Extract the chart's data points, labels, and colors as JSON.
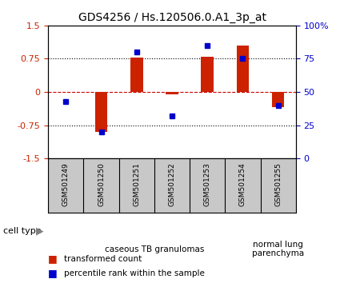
{
  "title": "GDS4256 / Hs.120506.0.A1_3p_at",
  "samples": [
    "GSM501249",
    "GSM501250",
    "GSM501251",
    "GSM501252",
    "GSM501253",
    "GSM501254",
    "GSM501255"
  ],
  "transformed_count": [
    0.0,
    -0.9,
    0.78,
    -0.05,
    0.8,
    1.05,
    -0.35
  ],
  "percentile_rank": [
    43,
    20,
    80,
    32,
    85,
    75,
    40
  ],
  "cell_type_groups": [
    {
      "label": "caseous TB granulomas",
      "start": 0,
      "end": 5,
      "color": "#c8f5c8"
    },
    {
      "label": "normal lung\nparenchyma",
      "start": 6,
      "end": 6,
      "color": "#7dce7d"
    }
  ],
  "left_ylim": [
    -1.5,
    1.5
  ],
  "left_yticks": [
    -1.5,
    -0.75,
    0,
    0.75,
    1.5
  ],
  "left_yticklabels": [
    "-1.5",
    "-0.75",
    "0",
    "0.75",
    "1.5"
  ],
  "right_ylim": [
    0,
    100
  ],
  "right_yticks": [
    0,
    25,
    50,
    75,
    100
  ],
  "right_yticklabels": [
    "0",
    "25",
    "50",
    "75",
    "100%"
  ],
  "bar_color": "#cc2200",
  "dot_color": "#0000cc",
  "hline_color": "#cc0000",
  "bg_color": "#ffffff",
  "plot_bg_color": "#ffffff",
  "left_tick_color": "#cc2200",
  "right_tick_color": "#0000cc",
  "bar_width": 0.35,
  "label_bg": "#c8c8c8",
  "legend_red_label": "transformed count",
  "legend_blue_label": "percentile rank within the sample",
  "cell_type_label": "cell type",
  "figsize": [
    4.3,
    3.54
  ],
  "dpi": 100
}
